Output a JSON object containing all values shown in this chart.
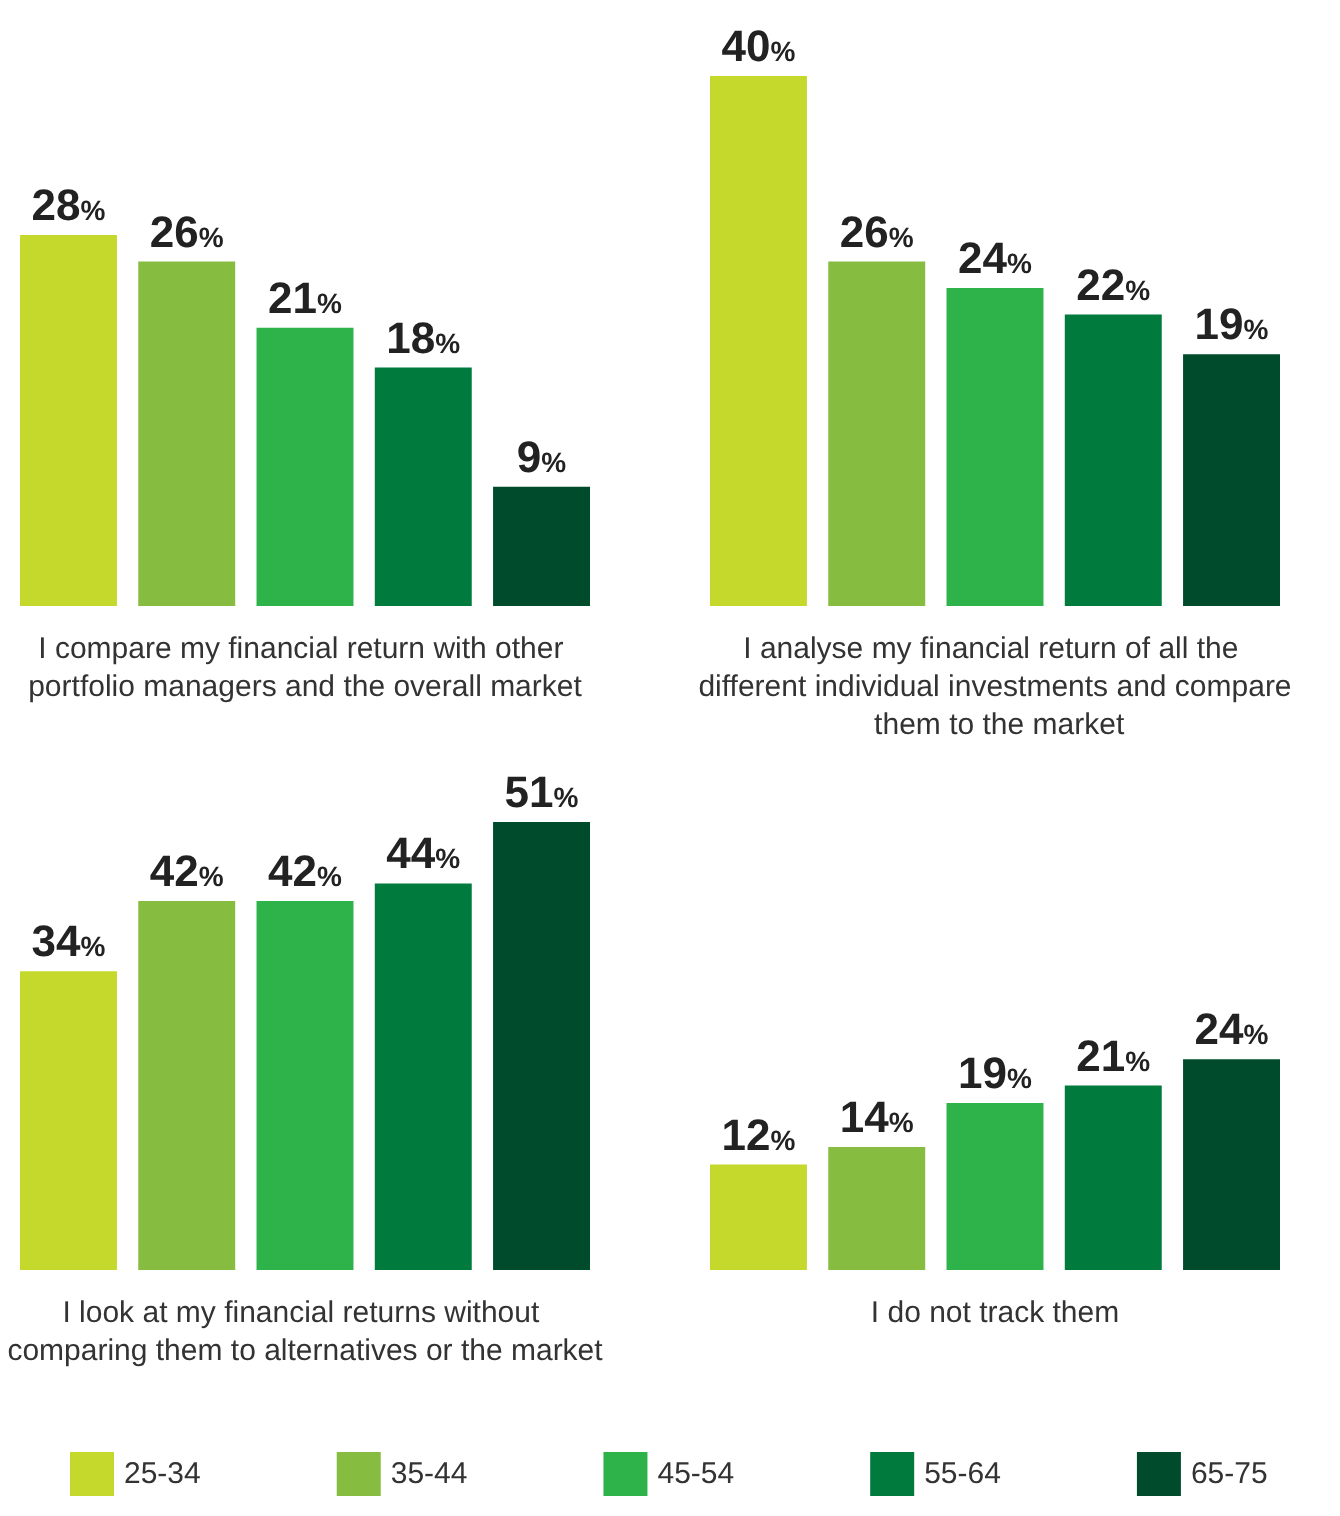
{
  "chart_data": [
    {
      "type": "bar",
      "xlabel": "I compare my financial return with other portfolio managers and the overall market",
      "categories": [
        null
      ],
      "legend": false,
      "series": [
        {
          "color": "#c5d92d",
          "values": [
            28
          ],
          "value_labels": [
            "28%"
          ]
        },
        {
          "color": "#86bc40",
          "values": [
            26
          ],
          "value_labels": [
            "26%"
          ]
        },
        {
          "color": "#2db34a",
          "values": [
            21
          ],
          "value_labels": [
            "21%"
          ]
        },
        {
          "color": "#007a3d",
          "values": [
            18
          ],
          "value_labels": [
            "18%"
          ]
        },
        {
          "color": "#004b2b",
          "values": [
            9
          ],
          "value_labels": [
            "9%"
          ]
        }
      ]
    },
    {
      "type": "bar",
      "xlabel": "I analyse my financial return of all the different individual investments and compare them to the market",
      "categories": [
        null
      ],
      "legend": false,
      "series": [
        {
          "color": "#c5d92d",
          "values": [
            40
          ],
          "value_labels": [
            "40%"
          ]
        },
        {
          "color": "#86bc40",
          "values": [
            26
          ],
          "value_labels": [
            "26%"
          ]
        },
        {
          "color": "#2db34a",
          "values": [
            24
          ],
          "value_labels": [
            "24%"
          ]
        },
        {
          "color": "#007a3d",
          "values": [
            22
          ],
          "value_labels": [
            "22%"
          ]
        },
        {
          "color": "#004b2b",
          "values": [
            19
          ],
          "value_labels": [
            "19%"
          ]
        }
      ]
    },
    {
      "type": "bar",
      "xlabel": "I look at my financial returns without comparing them to alternatives or the market",
      "categories": [
        null
      ],
      "legend": false,
      "series": [
        {
          "color": "#c5d92d",
          "values": [
            34
          ],
          "value_labels": [
            "34%"
          ]
        },
        {
          "color": "#86bc40",
          "values": [
            42
          ],
          "value_labels": [
            "42%"
          ]
        },
        {
          "color": "#2db34a",
          "values": [
            42
          ],
          "value_labels": [
            "42%"
          ]
        },
        {
          "color": "#007a3d",
          "values": [
            44
          ],
          "value_labels": [
            "44%"
          ]
        },
        {
          "color": "#004b2b",
          "values": [
            51
          ],
          "value_labels": [
            "51%"
          ]
        }
      ]
    },
    {
      "type": "bar",
      "xlabel": "I do not track them",
      "categories": [
        null
      ],
      "legend": "bottom",
      "series": [
        {
          "name": "25-34",
          "color": "#c5d92d",
          "values": [
            12
          ],
          "value_labels": [
            "12%"
          ]
        },
        {
          "name": "35-44",
          "color": "#86bc40",
          "values": [
            14
          ],
          "value_labels": [
            "14%"
          ]
        },
        {
          "name": "45-54",
          "color": "#2db34a",
          "values": [
            19
          ],
          "value_labels": [
            "19%"
          ]
        },
        {
          "name": "55-64",
          "color": "#007a3d",
          "values": [
            21
          ],
          "value_labels": [
            "21%"
          ]
        },
        {
          "name": "65-75",
          "color": "#004b2b",
          "values": [
            24
          ],
          "value_labels": [
            "24%"
          ]
        }
      ]
    }
  ]
}
